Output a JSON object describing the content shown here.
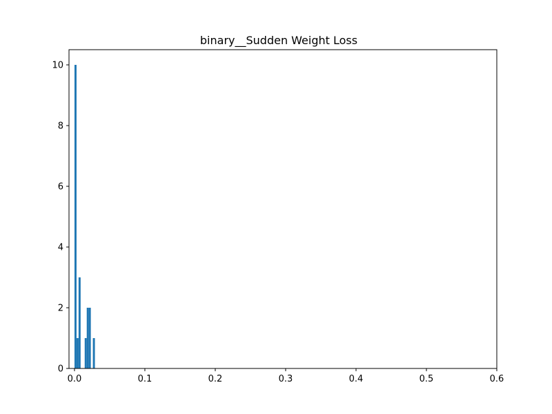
{
  "chart_data": {
    "type": "bar",
    "title": "binary__Sudden Weight Loss",
    "xlabel": "",
    "ylabel": "",
    "xlim": [
      -0.0078,
      0.6
    ],
    "ylim": [
      0,
      10.5
    ],
    "x_ticks": [
      {
        "value": 0.0,
        "label": "0.0"
      },
      {
        "value": 0.1,
        "label": "0.1"
      },
      {
        "value": 0.2,
        "label": "0.2"
      },
      {
        "value": 0.3,
        "label": "0.3"
      },
      {
        "value": 0.4,
        "label": "0.4"
      },
      {
        "value": 0.5,
        "label": "0.5"
      },
      {
        "value": 0.6,
        "label": "0.6"
      }
    ],
    "y_ticks": [
      {
        "value": 0,
        "label": "0"
      },
      {
        "value": 2,
        "label": "2"
      },
      {
        "value": 4,
        "label": "4"
      },
      {
        "value": 6,
        "label": "6"
      },
      {
        "value": 8,
        "label": "8"
      },
      {
        "value": 10,
        "label": "10"
      }
    ],
    "bins": [
      {
        "start": 0.0,
        "end": 0.0029,
        "count": 10
      },
      {
        "start": 0.0029,
        "end": 0.0058,
        "count": 1
      },
      {
        "start": 0.0058,
        "end": 0.0087,
        "count": 3
      },
      {
        "start": 0.0087,
        "end": 0.0116,
        "count": 0
      },
      {
        "start": 0.0116,
        "end": 0.0145,
        "count": 0
      },
      {
        "start": 0.0145,
        "end": 0.0174,
        "count": 1
      },
      {
        "start": 0.0174,
        "end": 0.0203,
        "count": 2
      },
      {
        "start": 0.0203,
        "end": 0.0232,
        "count": 2
      },
      {
        "start": 0.0232,
        "end": 0.0261,
        "count": 0
      },
      {
        "start": 0.0261,
        "end": 0.029,
        "count": 1
      }
    ],
    "bar_color": "#1f77b4",
    "grid": false,
    "legend": "none"
  }
}
